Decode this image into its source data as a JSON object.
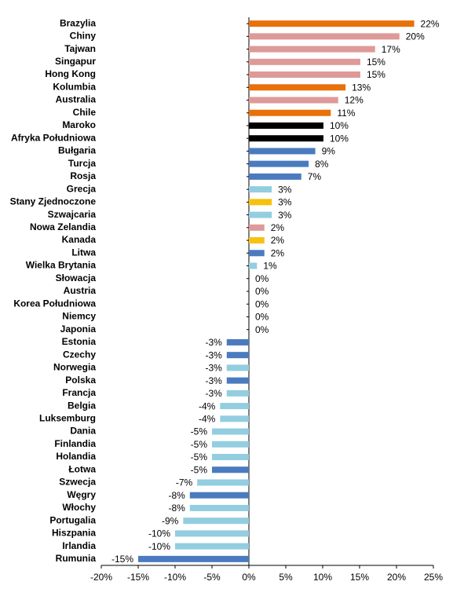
{
  "chart_data": {
    "type": "bar",
    "orientation": "horizontal",
    "categories": [
      "Brazylia",
      "Chiny",
      "Tajwan",
      "Singapur",
      "Hong Kong",
      "Kolumbia",
      "Australia",
      "Chile",
      "Maroko",
      "Afryka Południowa",
      "Bułgaria",
      "Turcja",
      "Rosja",
      "Grecja",
      "Stany Zjednoczone",
      "Szwajcaria",
      "Nowa Zelandia",
      "Kanada",
      "Litwa",
      "Wielka Brytania",
      "Słowacja",
      "Austria",
      "Korea Południowa",
      "Niemcy",
      "Japonia",
      "Estonia",
      "Czechy",
      "Norwegia",
      "Polska",
      "Francja",
      "Belgia",
      "Luksemburg",
      "Dania",
      "Finlandia",
      "Holandia",
      "Łotwa",
      "Szwecja",
      "Węgry",
      "Włochy",
      "Portugalia",
      "Hiszpania",
      "Irlandia",
      "Rumunia"
    ],
    "values": [
      22.4,
      20.4,
      17.1,
      15.1,
      15.1,
      13.1,
      12.1,
      11.1,
      10.1,
      10.1,
      9.0,
      8.1,
      7.1,
      3.1,
      3.1,
      3.1,
      2.1,
      2.1,
      2.1,
      1.1,
      0,
      0,
      0,
      0,
      0,
      -3.0,
      -3.0,
      -3.0,
      -3.0,
      -3.0,
      -3.9,
      -3.9,
      -5.0,
      -5.0,
      -5.0,
      -5.0,
      -7.0,
      -8.0,
      -8.0,
      -8.9,
      -10.0,
      -10.0,
      -15.0
    ],
    "value_labels": [
      "22%",
      "20%",
      "17%",
      "15%",
      "15%",
      "13%",
      "12%",
      "11%",
      "10%",
      "10%",
      "9%",
      "8%",
      "7%",
      "3%",
      "3%",
      "3%",
      "2%",
      "2%",
      "2%",
      "1%",
      "0%",
      "0%",
      "0%",
      "0%",
      "0%",
      "-3%",
      "-3%",
      "-3%",
      "-3%",
      "-3%",
      "-4%",
      "-4%",
      "-5%",
      "-5%",
      "-5%",
      "-5%",
      "-7%",
      "-8%",
      "-8%",
      "-9%",
      "-10%",
      "-10%",
      "-15%"
    ],
    "colors": [
      "#e8710a",
      "#dd9a98",
      "#dd9a98",
      "#dd9a98",
      "#dd9a98",
      "#e8710a",
      "#dd9a98",
      "#e8710a",
      "#000000",
      "#000000",
      "#4a7bbf",
      "#4a7bbf",
      "#4a7bbf",
      "#93cde0",
      "#f7c10f",
      "#93cde0",
      "#dd9a98",
      "#f7c10f",
      "#4a7bbf",
      "#93cde0",
      "#93cde0",
      "#93cde0",
      "#93cde0",
      "#93cde0",
      "#93cde0",
      "#4a7bbf",
      "#4a7bbf",
      "#93cde0",
      "#4a7bbf",
      "#93cde0",
      "#93cde0",
      "#93cde0",
      "#93cde0",
      "#93cde0",
      "#93cde0",
      "#4a7bbf",
      "#93cde0",
      "#4a7bbf",
      "#93cde0",
      "#93cde0",
      "#93cde0",
      "#93cde0",
      "#4a7bbf"
    ],
    "xlim": [
      -20,
      25
    ],
    "xticks": [
      {
        "value": -20,
        "label": "-20%"
      },
      {
        "value": -15,
        "label": "-15%"
      },
      {
        "value": -10,
        "label": "-10%"
      },
      {
        "value": -5,
        "label": "-5%"
      },
      {
        "value": 0,
        "label": "0%"
      },
      {
        "value": 5,
        "label": "5%"
      },
      {
        "value": 10,
        "label": "10%"
      },
      {
        "value": 15,
        "label": "15%"
      },
      {
        "value": 20,
        "label": "20%"
      },
      {
        "value": 25,
        "label": "25%"
      }
    ]
  }
}
